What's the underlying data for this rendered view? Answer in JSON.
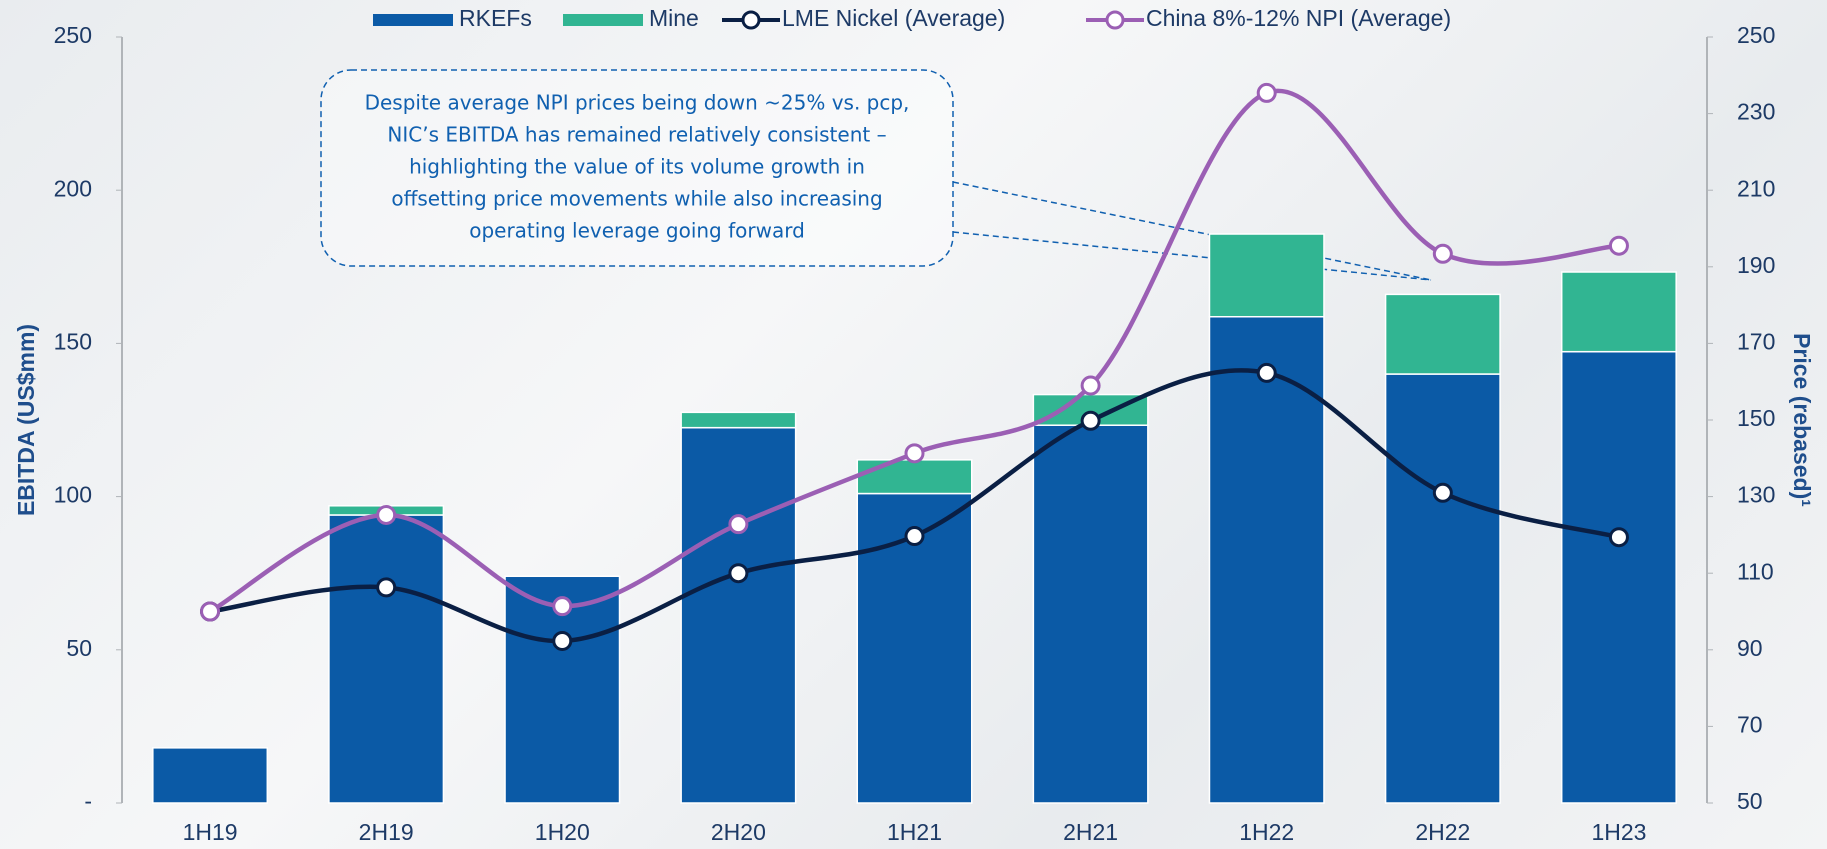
{
  "chart_data": {
    "type": "bar",
    "categories": [
      "1H19",
      "2H19",
      "1H20",
      "2H20",
      "1H21",
      "2H21",
      "1H22",
      "2H22",
      "1H23"
    ],
    "series": [
      {
        "name": "RKEFs",
        "color": "#0b5aa6",
        "values": [
          18,
          94,
          74,
          122.5,
          101,
          123.3,
          158.7,
          140,
          147.3
        ]
      },
      {
        "name": "Mine",
        "color": "#31b592",
        "values": [
          0,
          3,
          0,
          5,
          11,
          10,
          27,
          26,
          26
        ]
      },
      {
        "name": "LME Nickel (Average)",
        "type": "line",
        "axis": "y2",
        "color": "#0a1f44",
        "values": [
          100,
          106.3,
          92.3,
          110,
          119.7,
          149.8,
          162.3,
          131,
          119.4
        ]
      },
      {
        "name": "China 8%-12% NPI (Average)",
        "type": "line",
        "axis": "y2",
        "color": "#9b5fb4",
        "values": [
          100,
          125.2,
          101.4,
          122.8,
          141.3,
          159,
          235.4,
          193.4,
          195.5
        ]
      }
    ],
    "stacked": true,
    "ylabel": "EBITDA (US$mm)",
    "y2label": "Price (rebased)¹",
    "ylim": [
      0,
      250
    ],
    "yticks": [
      {
        "value": 0,
        "label": "-"
      },
      50,
      100,
      150,
      200,
      250
    ],
    "y2lim": [
      50,
      250
    ],
    "y2ticks": [
      50,
      70,
      90,
      110,
      130,
      150,
      170,
      190,
      210,
      230,
      250
    ],
    "annotation": [
      "Despite average NPI prices being down ~25% vs. pcp,",
      "NIC’s EBITDA has remained relatively consistent –",
      "highlighting the value of its volume growth in",
      "offsetting price movements while also increasing",
      "operating leverage going forward"
    ],
    "legend": "top"
  }
}
